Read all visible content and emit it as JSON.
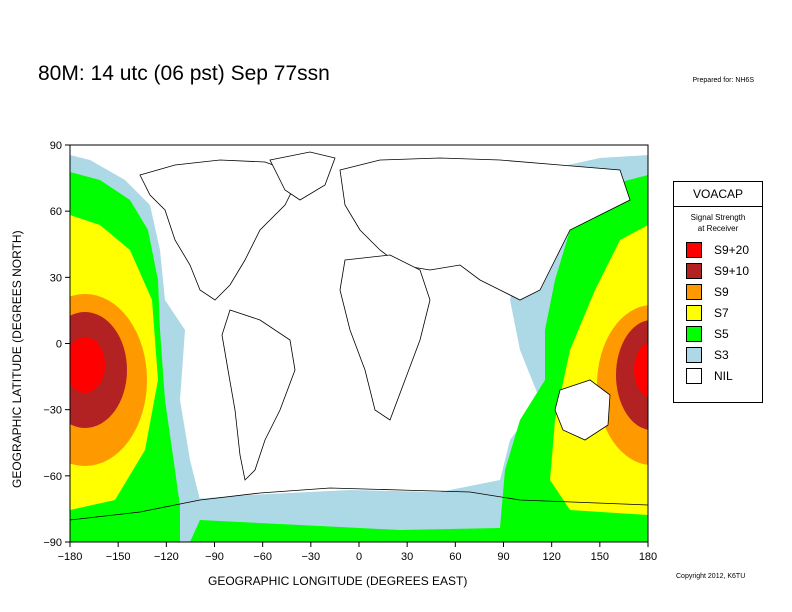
{
  "title": "80M:  14 utc (06 pst) Sep 77ssn",
  "prepared": "Prepared for: NH6S",
  "copyright": "Copyright 2012, K6TU",
  "axes": {
    "xlabel": "GEOGRAPHIC LONGITUDE (DEGREES EAST)",
    "ylabel": "GEOGRAPHIC LATITUDE (DEGREES NORTH)",
    "xticks": [
      "−180",
      "−150",
      "−120",
      "−90",
      "−60",
      "−30",
      "0",
      "30",
      "60",
      "90",
      "120",
      "150",
      "180"
    ],
    "yticks": [
      "90",
      "60",
      "30",
      "0",
      "−30",
      "−60",
      "−90"
    ],
    "xrange": [
      -180,
      180
    ],
    "yrange": [
      -90,
      90
    ]
  },
  "legend": {
    "title": "VOACAP",
    "subtitle_line1": "Signal Strength",
    "subtitle_line2": "at Receiver",
    "items": [
      {
        "label": "S9+20",
        "color": "#ff0000"
      },
      {
        "label": "S9+10",
        "color": "#b22222"
      },
      {
        "label": "S9",
        "color": "#ff9900"
      },
      {
        "label": "S7",
        "color": "#ffff00"
      },
      {
        "label": "S5",
        "color": "#00ff00"
      },
      {
        "label": "S3",
        "color": "#add8e6"
      },
      {
        "label": "NIL",
        "color": "#ffffff"
      }
    ]
  },
  "colors": {
    "s9p20": "#ff0000",
    "s9p10": "#b22222",
    "s9": "#ff9900",
    "s7": "#ffff00",
    "s5": "#00ff00",
    "s3": "#add8e6",
    "nil": "#ffffff"
  }
}
